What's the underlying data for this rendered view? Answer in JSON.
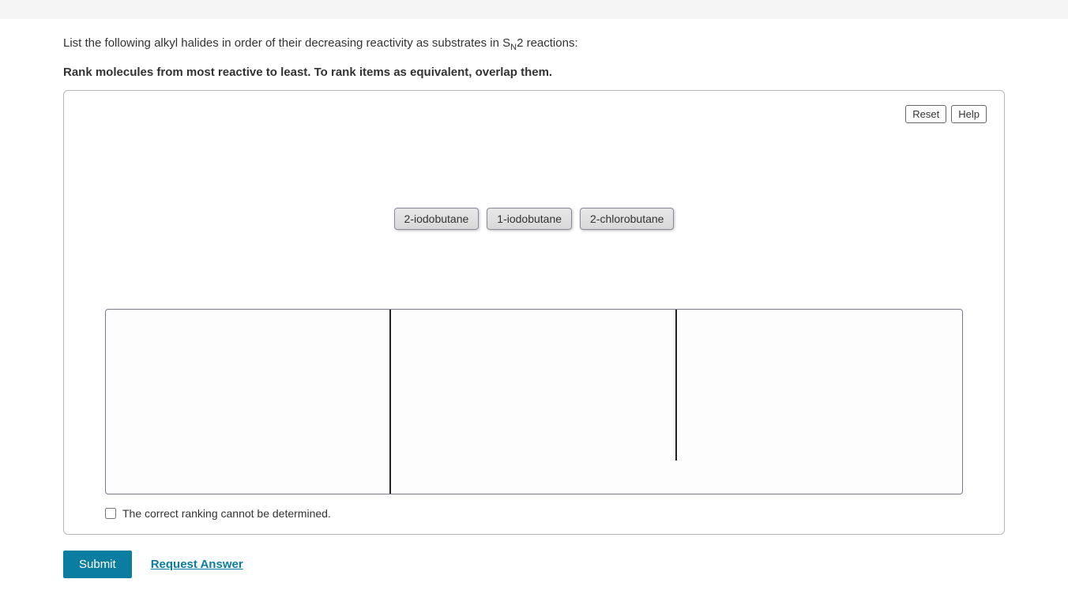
{
  "question": {
    "prompt_prefix": "List the following alkyl halides in order of their decreasing reactivity as substrates in S",
    "prompt_sub": "N",
    "prompt_suffix": "2 reactions:",
    "instruction": "Rank molecules from most reactive to least. To rank items as equivalent, overlap them."
  },
  "panel": {
    "reset_label": "Reset",
    "help_label": "Help",
    "items": [
      {
        "label": "2-iodobutane"
      },
      {
        "label": "1-iodobutane"
      },
      {
        "label": "2-chlorobutane"
      }
    ],
    "slot_count": 3,
    "checkbox_label": "The correct ranking cannot be determined."
  },
  "actions": {
    "submit_label": "Submit",
    "request_label": "Request Answer"
  },
  "colors": {
    "primary": "#0b7da0",
    "panel_border": "#b8b8b8",
    "item_border": "#8a8a9a",
    "divider": "#222222"
  }
}
